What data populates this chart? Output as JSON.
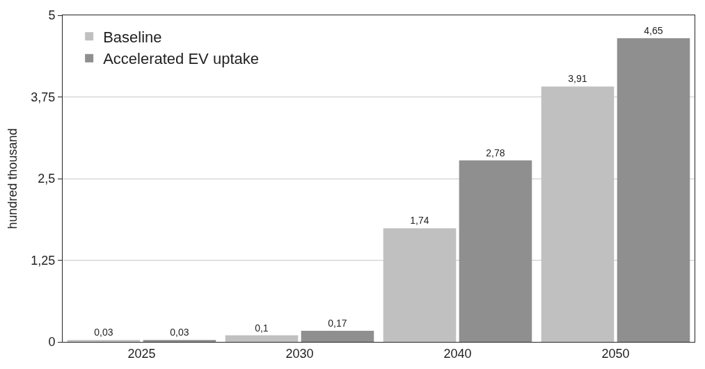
{
  "chart_data": {
    "type": "bar",
    "ylabel": "hundred thousand",
    "categories": [
      "2025",
      "2030",
      "2040",
      "2050"
    ],
    "series": [
      {
        "name": "Baseline",
        "color": "#c0c0c0",
        "values": [
          0.03,
          0.1,
          1.74,
          3.91
        ],
        "value_labels": [
          "0,03",
          "0,1",
          "1,74",
          "3,91"
        ]
      },
      {
        "name": "Accelerated EV uptake",
        "color": "#8f8f8f",
        "values": [
          0.03,
          0.17,
          2.78,
          4.65
        ],
        "value_labels": [
          "0,03",
          "0,17",
          "2,78",
          "4,65"
        ]
      }
    ],
    "ylim": [
      0,
      5
    ],
    "yticks": [
      {
        "value": 0,
        "label": "0"
      },
      {
        "value": 1.25,
        "label": "1,25"
      },
      {
        "value": 2.5,
        "label": "2,5"
      },
      {
        "value": 3.75,
        "label": "3,75"
      },
      {
        "value": 5,
        "label": "5"
      }
    ],
    "grid": "y",
    "legend": "top left"
  }
}
